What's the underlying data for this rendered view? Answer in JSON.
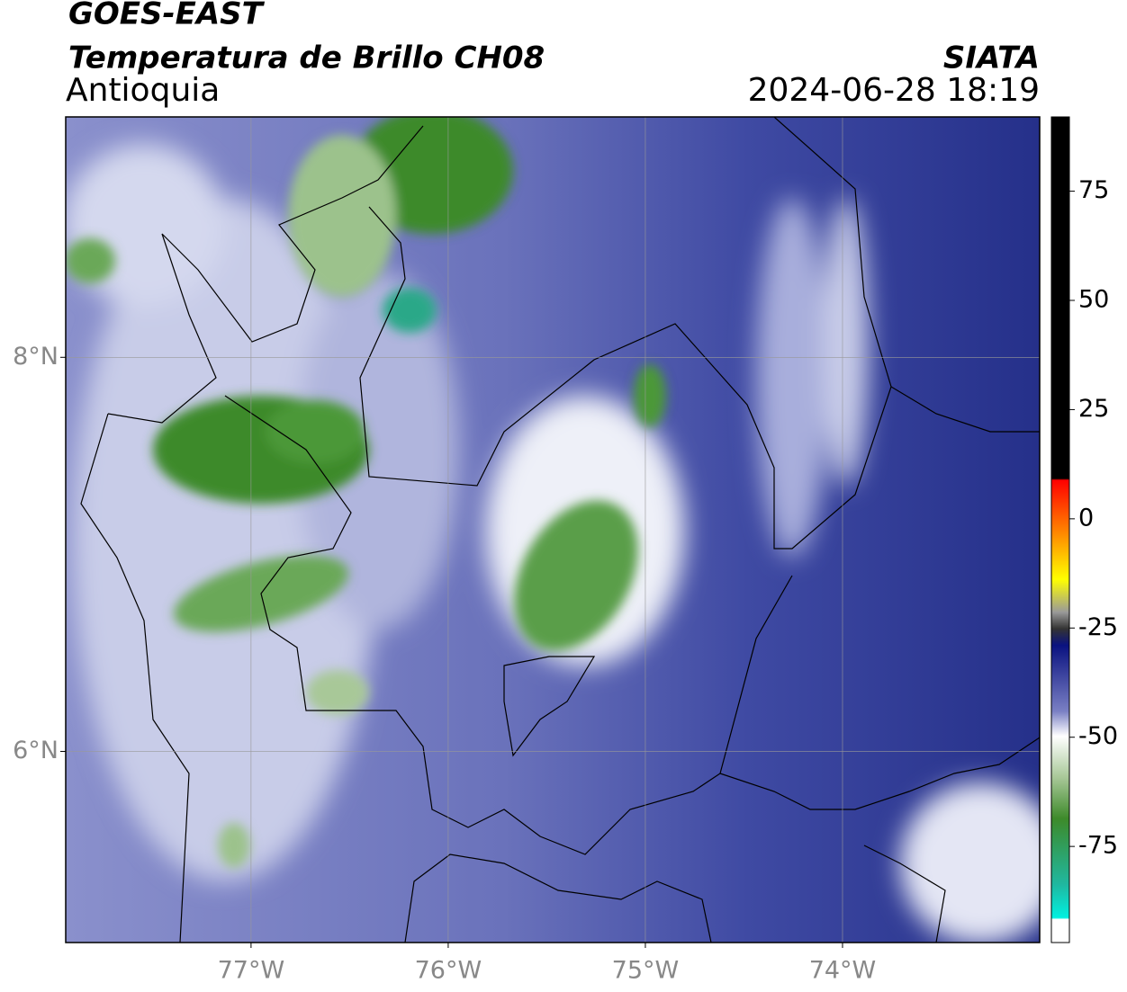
{
  "header": {
    "title": "GOES-EAST",
    "subtitle": "Temperatura de Brillo CH08",
    "region": "Antioquia",
    "source": "SIATA",
    "datetime": "2024-06-28 18:19"
  },
  "map": {
    "xlim": [
      -77.94,
      -73.0
    ],
    "ylim": [
      5.03,
      9.22
    ],
    "xticks": [
      {
        "value": -77,
        "label": "77°W"
      },
      {
        "value": -76,
        "label": "76°W"
      },
      {
        "value": -75,
        "label": "75°W"
      },
      {
        "value": -74,
        "label": "74°W"
      }
    ],
    "yticks": [
      {
        "value": 8,
        "label": "8°N"
      },
      {
        "value": 6,
        "label": "6°N"
      }
    ],
    "grid": true
  },
  "colorbar": {
    "lim": [
      -97,
      92
    ],
    "ticks": [
      -75,
      -50,
      -25,
      0,
      25,
      50,
      75
    ]
  }
}
